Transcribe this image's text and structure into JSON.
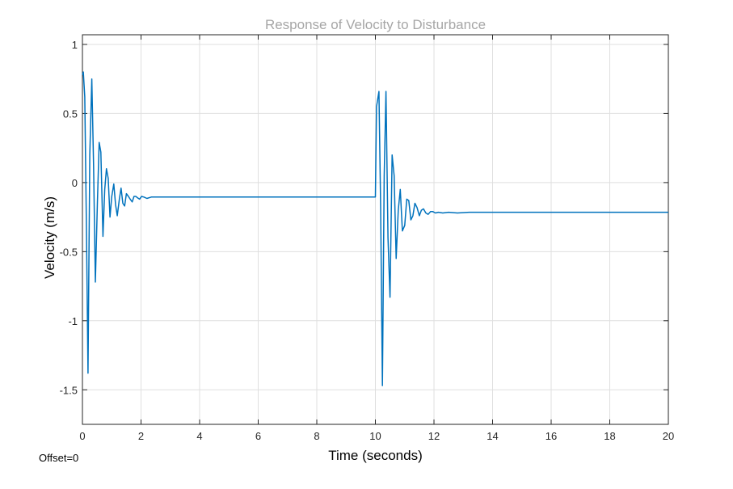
{
  "chart_data": {
    "type": "line",
    "title": "Response of Velocity to Disturbance",
    "xlabel": "Time (seconds)",
    "ylabel": "Velocity (m/s)",
    "xlim": [
      0,
      20
    ],
    "ylim": [
      -1.75,
      1.07
    ],
    "xticks": [
      0,
      2,
      4,
      6,
      8,
      10,
      12,
      14,
      16,
      18,
      20
    ],
    "xtick_labels": [
      "0",
      "2",
      "4",
      "6",
      "8",
      "10",
      "12",
      "14",
      "16",
      "18",
      "20"
    ],
    "yticks": [
      1,
      0.5,
      0,
      -0.5,
      -1,
      -1.5
    ],
    "ytick_labels": [
      "1",
      "0.5",
      "0",
      "-0.5",
      "-1",
      "-1.5"
    ],
    "grid": true,
    "series": [
      {
        "color": "#0072bd",
        "x": [
          0,
          0.03,
          0.08,
          0.14,
          0.19,
          0.25,
          0.32,
          0.38,
          0.44,
          0.51,
          0.57,
          0.63,
          0.7,
          0.76,
          0.82,
          0.88,
          0.94,
          1.0,
          1.07,
          1.13,
          1.19,
          1.26,
          1.32,
          1.38,
          1.44,
          1.5,
          1.57,
          1.63,
          1.7,
          1.76,
          1.82,
          1.88,
          1.95,
          2.02,
          2.1,
          2.2,
          2.35,
          2.5,
          2.8,
          3.2,
          4,
          5,
          6,
          7,
          8,
          9,
          9.8,
          10.0,
          10.04,
          10.12,
          10.18,
          10.24,
          10.3,
          10.36,
          10.43,
          10.5,
          10.57,
          10.64,
          10.71,
          10.78,
          10.85,
          10.92,
          11.0,
          11.07,
          11.14,
          11.21,
          11.28,
          11.35,
          11.42,
          11.5,
          11.57,
          11.64,
          11.72,
          11.8,
          11.88,
          11.96,
          12.05,
          12.15,
          12.3,
          12.5,
          12.8,
          13.2,
          14,
          15,
          16,
          17,
          18,
          19,
          20
        ],
        "y": [
          0.78,
          0.8,
          0.62,
          -0.4,
          -1.38,
          0.2,
          0.75,
          0.12,
          -0.72,
          -0.15,
          0.29,
          0.22,
          -0.39,
          -0.05,
          0.1,
          0.03,
          -0.25,
          -0.1,
          -0.01,
          -0.16,
          -0.24,
          -0.12,
          -0.04,
          -0.15,
          -0.17,
          -0.08,
          -0.1,
          -0.12,
          -0.14,
          -0.1,
          -0.1,
          -0.11,
          -0.12,
          -0.1,
          -0.105,
          -0.115,
          -0.105,
          -0.105,
          -0.105,
          -0.105,
          -0.105,
          -0.105,
          -0.105,
          -0.105,
          -0.105,
          -0.105,
          -0.105,
          -0.105,
          0.55,
          0.66,
          -0.18,
          -1.47,
          0.05,
          0.66,
          -0.4,
          -0.83,
          0.2,
          0.05,
          -0.55,
          -0.2,
          -0.05,
          -0.35,
          -0.31,
          -0.12,
          -0.13,
          -0.27,
          -0.24,
          -0.15,
          -0.18,
          -0.24,
          -0.2,
          -0.19,
          -0.22,
          -0.23,
          -0.21,
          -0.21,
          -0.22,
          -0.215,
          -0.22,
          -0.215,
          -0.22,
          -0.215,
          -0.215,
          -0.215,
          -0.215,
          -0.215,
          -0.215,
          -0.215,
          -0.215
        ]
      }
    ]
  },
  "offset_label": "Offset=0",
  "colors": {
    "line": "#0072bd",
    "grid": "#dfdfdf",
    "axes": "#262626",
    "title": "#a6a6a6"
  }
}
